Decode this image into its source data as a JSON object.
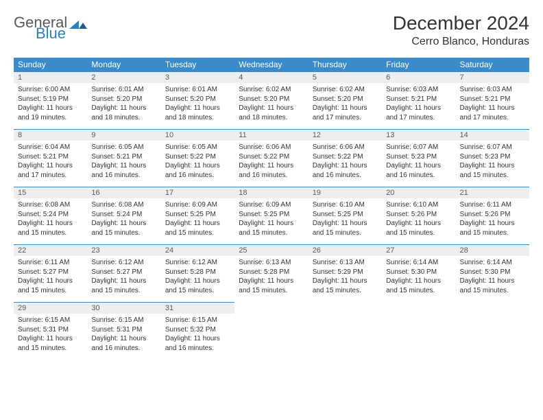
{
  "brand": {
    "general": "General",
    "blue": "Blue"
  },
  "title": "December 2024",
  "location": "Cerro Blanco, Honduras",
  "colors": {
    "header_bg": "#3b8bc8",
    "header_text": "#ffffff",
    "daynum_bg": "#eceeef",
    "text": "#333333",
    "rule": "#3b8bc8",
    "logo_gray": "#58595b",
    "logo_blue": "#2980c3"
  },
  "day_headers": [
    "Sunday",
    "Monday",
    "Tuesday",
    "Wednesday",
    "Thursday",
    "Friday",
    "Saturday"
  ],
  "weeks": [
    [
      {
        "n": "1",
        "sr": "6:00 AM",
        "ss": "5:19 PM",
        "dl": "11 hours and 19 minutes."
      },
      {
        "n": "2",
        "sr": "6:01 AM",
        "ss": "5:20 PM",
        "dl": "11 hours and 18 minutes."
      },
      {
        "n": "3",
        "sr": "6:01 AM",
        "ss": "5:20 PM",
        "dl": "11 hours and 18 minutes."
      },
      {
        "n": "4",
        "sr": "6:02 AM",
        "ss": "5:20 PM",
        "dl": "11 hours and 18 minutes."
      },
      {
        "n": "5",
        "sr": "6:02 AM",
        "ss": "5:20 PM",
        "dl": "11 hours and 17 minutes."
      },
      {
        "n": "6",
        "sr": "6:03 AM",
        "ss": "5:21 PM",
        "dl": "11 hours and 17 minutes."
      },
      {
        "n": "7",
        "sr": "6:03 AM",
        "ss": "5:21 PM",
        "dl": "11 hours and 17 minutes."
      }
    ],
    [
      {
        "n": "8",
        "sr": "6:04 AM",
        "ss": "5:21 PM",
        "dl": "11 hours and 17 minutes."
      },
      {
        "n": "9",
        "sr": "6:05 AM",
        "ss": "5:21 PM",
        "dl": "11 hours and 16 minutes."
      },
      {
        "n": "10",
        "sr": "6:05 AM",
        "ss": "5:22 PM",
        "dl": "11 hours and 16 minutes."
      },
      {
        "n": "11",
        "sr": "6:06 AM",
        "ss": "5:22 PM",
        "dl": "11 hours and 16 minutes."
      },
      {
        "n": "12",
        "sr": "6:06 AM",
        "ss": "5:22 PM",
        "dl": "11 hours and 16 minutes."
      },
      {
        "n": "13",
        "sr": "6:07 AM",
        "ss": "5:23 PM",
        "dl": "11 hours and 16 minutes."
      },
      {
        "n": "14",
        "sr": "6:07 AM",
        "ss": "5:23 PM",
        "dl": "11 hours and 15 minutes."
      }
    ],
    [
      {
        "n": "15",
        "sr": "6:08 AM",
        "ss": "5:24 PM",
        "dl": "11 hours and 15 minutes."
      },
      {
        "n": "16",
        "sr": "6:08 AM",
        "ss": "5:24 PM",
        "dl": "11 hours and 15 minutes."
      },
      {
        "n": "17",
        "sr": "6:09 AM",
        "ss": "5:25 PM",
        "dl": "11 hours and 15 minutes."
      },
      {
        "n": "18",
        "sr": "6:09 AM",
        "ss": "5:25 PM",
        "dl": "11 hours and 15 minutes."
      },
      {
        "n": "19",
        "sr": "6:10 AM",
        "ss": "5:25 PM",
        "dl": "11 hours and 15 minutes."
      },
      {
        "n": "20",
        "sr": "6:10 AM",
        "ss": "5:26 PM",
        "dl": "11 hours and 15 minutes."
      },
      {
        "n": "21",
        "sr": "6:11 AM",
        "ss": "5:26 PM",
        "dl": "11 hours and 15 minutes."
      }
    ],
    [
      {
        "n": "22",
        "sr": "6:11 AM",
        "ss": "5:27 PM",
        "dl": "11 hours and 15 minutes."
      },
      {
        "n": "23",
        "sr": "6:12 AM",
        "ss": "5:27 PM",
        "dl": "11 hours and 15 minutes."
      },
      {
        "n": "24",
        "sr": "6:12 AM",
        "ss": "5:28 PM",
        "dl": "11 hours and 15 minutes."
      },
      {
        "n": "25",
        "sr": "6:13 AM",
        "ss": "5:28 PM",
        "dl": "11 hours and 15 minutes."
      },
      {
        "n": "26",
        "sr": "6:13 AM",
        "ss": "5:29 PM",
        "dl": "11 hours and 15 minutes."
      },
      {
        "n": "27",
        "sr": "6:14 AM",
        "ss": "5:30 PM",
        "dl": "11 hours and 15 minutes."
      },
      {
        "n": "28",
        "sr": "6:14 AM",
        "ss": "5:30 PM",
        "dl": "11 hours and 15 minutes."
      }
    ],
    [
      {
        "n": "29",
        "sr": "6:15 AM",
        "ss": "5:31 PM",
        "dl": "11 hours and 15 minutes."
      },
      {
        "n": "30",
        "sr": "6:15 AM",
        "ss": "5:31 PM",
        "dl": "11 hours and 16 minutes."
      },
      {
        "n": "31",
        "sr": "6:15 AM",
        "ss": "5:32 PM",
        "dl": "11 hours and 16 minutes."
      },
      null,
      null,
      null,
      null
    ]
  ],
  "labels": {
    "sunrise": "Sunrise:",
    "sunset": "Sunset:",
    "daylight": "Daylight:"
  }
}
